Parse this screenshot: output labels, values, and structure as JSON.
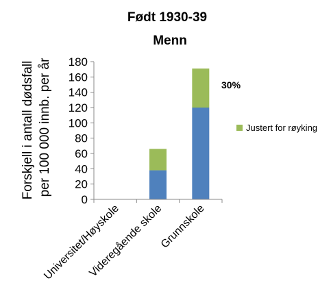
{
  "chart_data": {
    "type": "bar",
    "stacked": true,
    "title": "Født 1930-39",
    "subtitle": "Menn",
    "ylabel_line1": "Forskjell i antall dødsfall",
    "ylabel_line2": "per 100 000 innb. per år",
    "xlabel": "",
    "categories": [
      "Universitet/Høyskole",
      "Videregående skole",
      "Grunnskole"
    ],
    "series": [
      {
        "values": [
          0,
          38,
          120
        ],
        "color": "#4f81bd"
      },
      {
        "name": "Justert for røyking",
        "values": [
          0,
          28,
          51
        ],
        "color": "#9bbb59"
      }
    ],
    "ylim": [
      0,
      180
    ],
    "yticks": [
      0,
      20,
      40,
      60,
      80,
      100,
      120,
      140,
      160,
      180
    ],
    "grid": false,
    "legend_position": "right",
    "annotation": "30%"
  }
}
